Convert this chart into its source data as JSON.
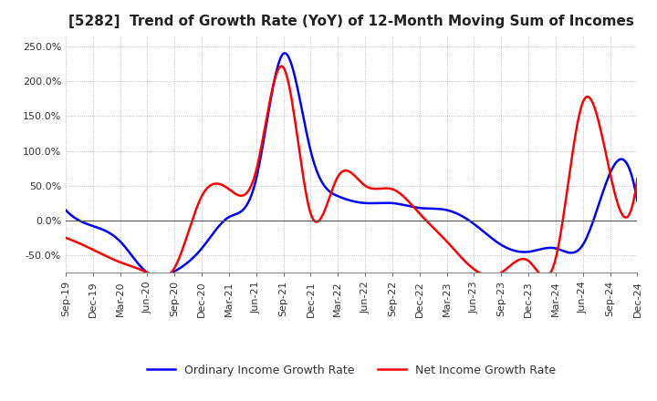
{
  "title": "[5282]  Trend of Growth Rate (YoY) of 12-Month Moving Sum of Incomes",
  "ylim": [
    -75,
    265
  ],
  "yticks": [
    -50.0,
    0.0,
    50.0,
    100.0,
    150.0,
    200.0,
    250.0
  ],
  "background_color": "#ffffff",
  "grid_color": "#aaaaaa",
  "legend_entries": [
    "Ordinary Income Growth Rate",
    "Net Income Growth Rate"
  ],
  "line_colors": [
    "#0000ff",
    "#ff0000"
  ],
  "x_labels": [
    "Sep-19",
    "Dec-19",
    "Mar-20",
    "Jun-20",
    "Sep-20",
    "Dec-20",
    "Mar-21",
    "Jun-21",
    "Sep-21",
    "Dec-21",
    "Mar-22",
    "Jun-22",
    "Sep-22",
    "Dec-22",
    "Mar-23",
    "Jun-23",
    "Sep-23",
    "Dec-23",
    "Mar-24",
    "Jun-24",
    "Sep-24",
    "Dec-24"
  ],
  "ordinary_income": [
    15.0,
    -8.0,
    -30.0,
    -75.0,
    -73.0,
    -40.0,
    5.0,
    60.0,
    240.0,
    100.0,
    35.0,
    25.0,
    25.0,
    18.0,
    15.0,
    -5.0,
    -35.0,
    -45.0,
    -40.0,
    -35.0,
    68.0,
    28.0
  ],
  "net_income": [
    -25.0,
    -42.0,
    -60.0,
    -75.0,
    -68.0,
    35.0,
    45.0,
    72.0,
    220.0,
    10.0,
    63.0,
    50.0,
    45.0,
    10.0,
    -30.0,
    -70.0,
    -75.0,
    -58.0,
    -55.0,
    170.0,
    68.0,
    60.0
  ]
}
